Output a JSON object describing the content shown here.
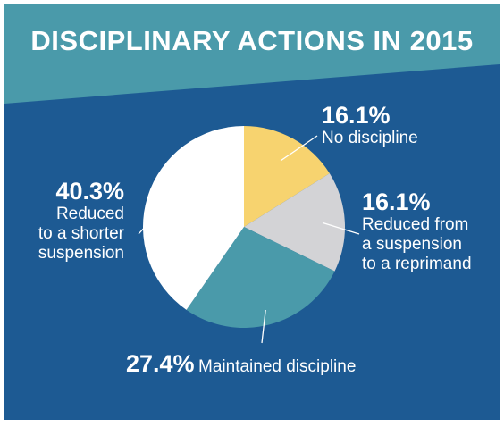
{
  "title": "DISCIPLINARY ACTIONS IN 2015",
  "colors": {
    "background": "#1d5a93",
    "header_band": "#4a9aaa",
    "leader_line": "#ffffff"
  },
  "chart_data": {
    "type": "pie",
    "title": "DISCIPLINARY ACTIONS IN 2015",
    "start_angle_deg": 0,
    "direction": "clockwise",
    "slices": [
      {
        "value": 16.1,
        "percent_label": "16.1%",
        "label": "No discipline",
        "color": "#f7d36f"
      },
      {
        "value": 16.1,
        "percent_label": "16.1%",
        "label": "Reduced from a suspension to a reprimand",
        "label_lines": [
          "Reduced from",
          "a suspension",
          "to a reprimand"
        ],
        "color": "#d3d3d6"
      },
      {
        "value": 27.4,
        "percent_label": "27.4%",
        "label": "Maintained discipline",
        "color": "#4a9aaa"
      },
      {
        "value": 40.3,
        "percent_label": "40.3%",
        "label": "Reduced to a shorter suspension",
        "label_lines": [
          "Reduced",
          "to a shorter",
          "suspension"
        ],
        "color": "#ffffff"
      }
    ]
  }
}
